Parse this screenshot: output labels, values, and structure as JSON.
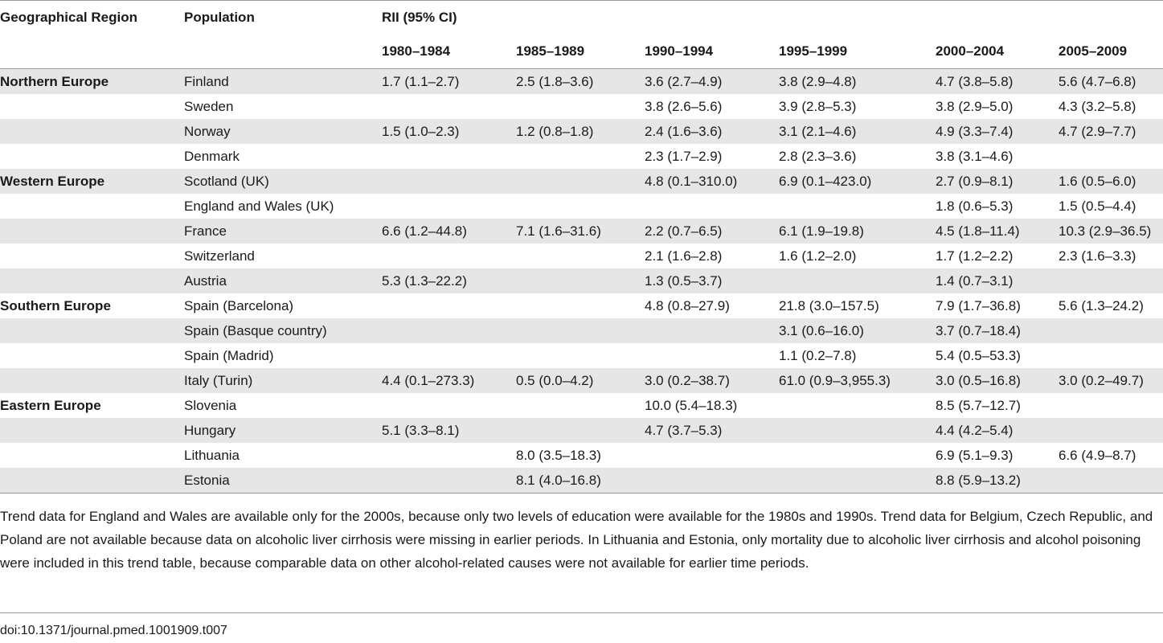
{
  "table": {
    "headers": {
      "region": "Geographical Region",
      "population": "Population",
      "rii": "RII (95% CI)",
      "periods": [
        "1980–1984",
        "1985–1989",
        "1990–1994",
        "1995–1999",
        "2000–2004",
        "2005–2009"
      ]
    },
    "rows": [
      {
        "region": "Northern Europe",
        "population": "Finland",
        "values": [
          "1.7 (1.1–2.7)",
          "2.5 (1.8–3.6)",
          "3.6 (2.7–4.9)",
          "3.8 (2.9–4.8)",
          "4.7 (3.8–5.8)",
          "5.6 (4.7–6.8)"
        ]
      },
      {
        "region": "",
        "population": "Sweden",
        "values": [
          "",
          "",
          "3.8 (2.6–5.6)",
          "3.9 (2.8–5.3)",
          "3.8 (2.9–5.0)",
          "4.3 (3.2–5.8)"
        ]
      },
      {
        "region": "",
        "population": "Norway",
        "values": [
          "1.5 (1.0–2.3)",
          "1.2 (0.8–1.8)",
          "2.4 (1.6–3.6)",
          "3.1 (2.1–4.6)",
          "4.9 (3.3–7.4)",
          "4.7 (2.9–7.7)"
        ]
      },
      {
        "region": "",
        "population": "Denmark",
        "values": [
          "",
          "",
          "2.3 (1.7–2.9)",
          "2.8 (2.3–3.6)",
          "3.8 (3.1–4.6)",
          ""
        ]
      },
      {
        "region": "Western Europe",
        "population": "Scotland (UK)",
        "values": [
          "",
          "",
          "4.8 (0.1–310.0)",
          "6.9 (0.1–423.0)",
          "2.7 (0.9–8.1)",
          "1.6 (0.5–6.0)"
        ]
      },
      {
        "region": "",
        "population": "England and Wales (UK)",
        "values": [
          "",
          "",
          "",
          "",
          "1.8 (0.6–5.3)",
          "1.5 (0.5–4.4)"
        ]
      },
      {
        "region": "",
        "population": "France",
        "values": [
          "6.6 (1.2–44.8)",
          "7.1 (1.6–31.6)",
          "2.2 (0.7–6.5)",
          "6.1 (1.9–19.8)",
          "4.5 (1.8–11.4)",
          "10.3 (2.9–36.5)"
        ]
      },
      {
        "region": "",
        "population": "Switzerland",
        "values": [
          "",
          "",
          "2.1 (1.6–2.8)",
          "1.6 (1.2–2.0)",
          "1.7 (1.2–2.2)",
          "2.3 (1.6–3.3)"
        ]
      },
      {
        "region": "",
        "population": "Austria",
        "values": [
          "5.3 (1.3–22.2)",
          "",
          "1.3 (0.5–3.7)",
          "",
          "1.4 (0.7–3.1)",
          ""
        ]
      },
      {
        "region": "Southern Europe",
        "population": "Spain (Barcelona)",
        "values": [
          "",
          "",
          "4.8 (0.8–27.9)",
          "21.8 (3.0–157.5)",
          "7.9 (1.7–36.8)",
          "5.6 (1.3–24.2)"
        ]
      },
      {
        "region": "",
        "population": "Spain (Basque country)",
        "values": [
          "",
          "",
          "",
          "3.1 (0.6–16.0)",
          "3.7 (0.7–18.4)",
          ""
        ]
      },
      {
        "region": "",
        "population": "Spain (Madrid)",
        "values": [
          "",
          "",
          "",
          "1.1 (0.2–7.8)",
          "5.4 (0.5–53.3)",
          ""
        ]
      },
      {
        "region": "",
        "population": "Italy (Turin)",
        "values": [
          "4.4 (0.1–273.3)",
          "0.5 (0.0–4.2)",
          "3.0 (0.2–38.7)",
          "61.0 (0.9–3,955.3)",
          "3.0 (0.5–16.8)",
          "3.0 (0.2–49.7)"
        ]
      },
      {
        "region": "Eastern Europe",
        "population": "Slovenia",
        "values": [
          "",
          "",
          "10.0 (5.4–18.3)",
          "",
          "8.5 (5.7–12.7)",
          ""
        ]
      },
      {
        "region": "",
        "population": "Hungary",
        "values": [
          "5.1 (3.3–8.1)",
          "",
          "4.7 (3.7–5.3)",
          "",
          "4.4 (4.2–5.4)",
          ""
        ]
      },
      {
        "region": "",
        "population": "Lithuania",
        "values": [
          "",
          "8.0 (3.5–18.3)",
          "",
          "",
          "6.9 (5.1–9.3)",
          "6.6 (4.9–8.7)"
        ]
      },
      {
        "region": "",
        "population": "Estonia",
        "values": [
          "",
          "8.1 (4.0–16.8)",
          "",
          "",
          "8.8 (5.9–13.2)",
          ""
        ]
      }
    ]
  },
  "footnote": "Trend data for England and Wales are available only for the 2000s, because only two levels of education were available for the 1980s and 1990s. Trend data for Belgium, Czech Republic, and Poland are not available because data on alcoholic liver cirrhosis were missing in earlier periods. In Lithuania and Estonia, only mortality due to alcoholic liver cirrhosis and alcohol poisoning were included in this trend table, because comparable data on other alcohol-related causes were not available for earlier time periods.",
  "doi": "doi:10.1371/journal.pmed.1001909.t007"
}
